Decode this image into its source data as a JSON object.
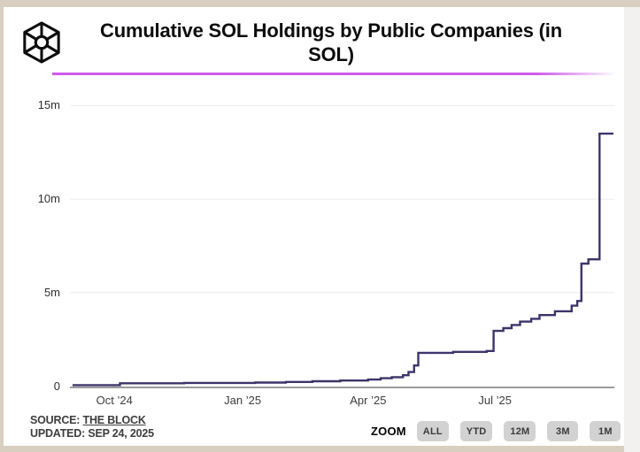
{
  "header": {
    "logo_name": "the-block-cube-logo",
    "title": "Cumulative SOL Holdings by Public Companies (in SOL)"
  },
  "colors": {
    "divider": "#ce5ce9",
    "line": "#3d3469",
    "gridline": "#ececec",
    "axis": "#9b9b9b",
    "frame_beige": "#d8cfc0",
    "card": "#ffffff",
    "button_bg": "#d2d2d2"
  },
  "chart_data": {
    "type": "line",
    "step": true,
    "title": "Cumulative SOL Holdings by Public Companies (in SOL)",
    "unit": "millions of SOL",
    "line_color": "#3d3469",
    "grid": "horizontal-only",
    "ylim": [
      0,
      15.75
    ],
    "x_domain": [
      "2024-09-01",
      "2025-09-24"
    ],
    "y_ticks": [
      {
        "label": "0",
        "value": 0
      },
      {
        "label": "5m",
        "value": 5
      },
      {
        "label": "10m",
        "value": 10
      },
      {
        "label": "15m",
        "value": 15
      }
    ],
    "x_ticks": [
      {
        "label": "Oct ’24",
        "date": "2024-10-01"
      },
      {
        "label": "Jan ’25",
        "date": "2025-01-01"
      },
      {
        "label": "Apr ’25",
        "date": "2025-04-01"
      },
      {
        "label": "Jul ’25",
        "date": "2025-07-01"
      }
    ],
    "points": [
      {
        "date": "2024-09-01",
        "value": 0.05
      },
      {
        "date": "2024-10-05",
        "value": 0.15
      },
      {
        "date": "2024-11-20",
        "value": 0.17
      },
      {
        "date": "2025-01-10",
        "value": 0.19
      },
      {
        "date": "2025-02-01",
        "value": 0.22
      },
      {
        "date": "2025-02-20",
        "value": 0.26
      },
      {
        "date": "2025-03-12",
        "value": 0.3
      },
      {
        "date": "2025-04-01",
        "value": 0.35
      },
      {
        "date": "2025-04-10",
        "value": 0.42
      },
      {
        "date": "2025-04-18",
        "value": 0.48
      },
      {
        "date": "2025-04-26",
        "value": 0.58
      },
      {
        "date": "2025-04-30",
        "value": 0.75
      },
      {
        "date": "2025-05-04",
        "value": 1.1
      },
      {
        "date": "2025-05-07",
        "value": 1.78
      },
      {
        "date": "2025-06-01",
        "value": 1.83
      },
      {
        "date": "2025-06-25",
        "value": 1.88
      },
      {
        "date": "2025-06-30",
        "value": 2.95
      },
      {
        "date": "2025-07-07",
        "value": 3.1
      },
      {
        "date": "2025-07-13",
        "value": 3.27
      },
      {
        "date": "2025-07-19",
        "value": 3.45
      },
      {
        "date": "2025-07-27",
        "value": 3.6
      },
      {
        "date": "2025-08-02",
        "value": 3.8
      },
      {
        "date": "2025-08-13",
        "value": 4.0
      },
      {
        "date": "2025-08-25",
        "value": 4.3
      },
      {
        "date": "2025-08-29",
        "value": 4.55
      },
      {
        "date": "2025-09-01",
        "value": 6.55
      },
      {
        "date": "2025-09-06",
        "value": 6.78
      },
      {
        "date": "2025-09-14",
        "value": 13.5
      },
      {
        "date": "2025-09-24",
        "value": 13.5
      }
    ]
  },
  "footer": {
    "source_label": "SOURCE:",
    "source_link": "THE BLOCK",
    "updated": "UPDATED: SEP 24, 2025",
    "zoom_label": "ZOOM",
    "zoom_buttons": [
      "ALL",
      "YTD",
      "12M",
      "3M",
      "1M"
    ]
  }
}
